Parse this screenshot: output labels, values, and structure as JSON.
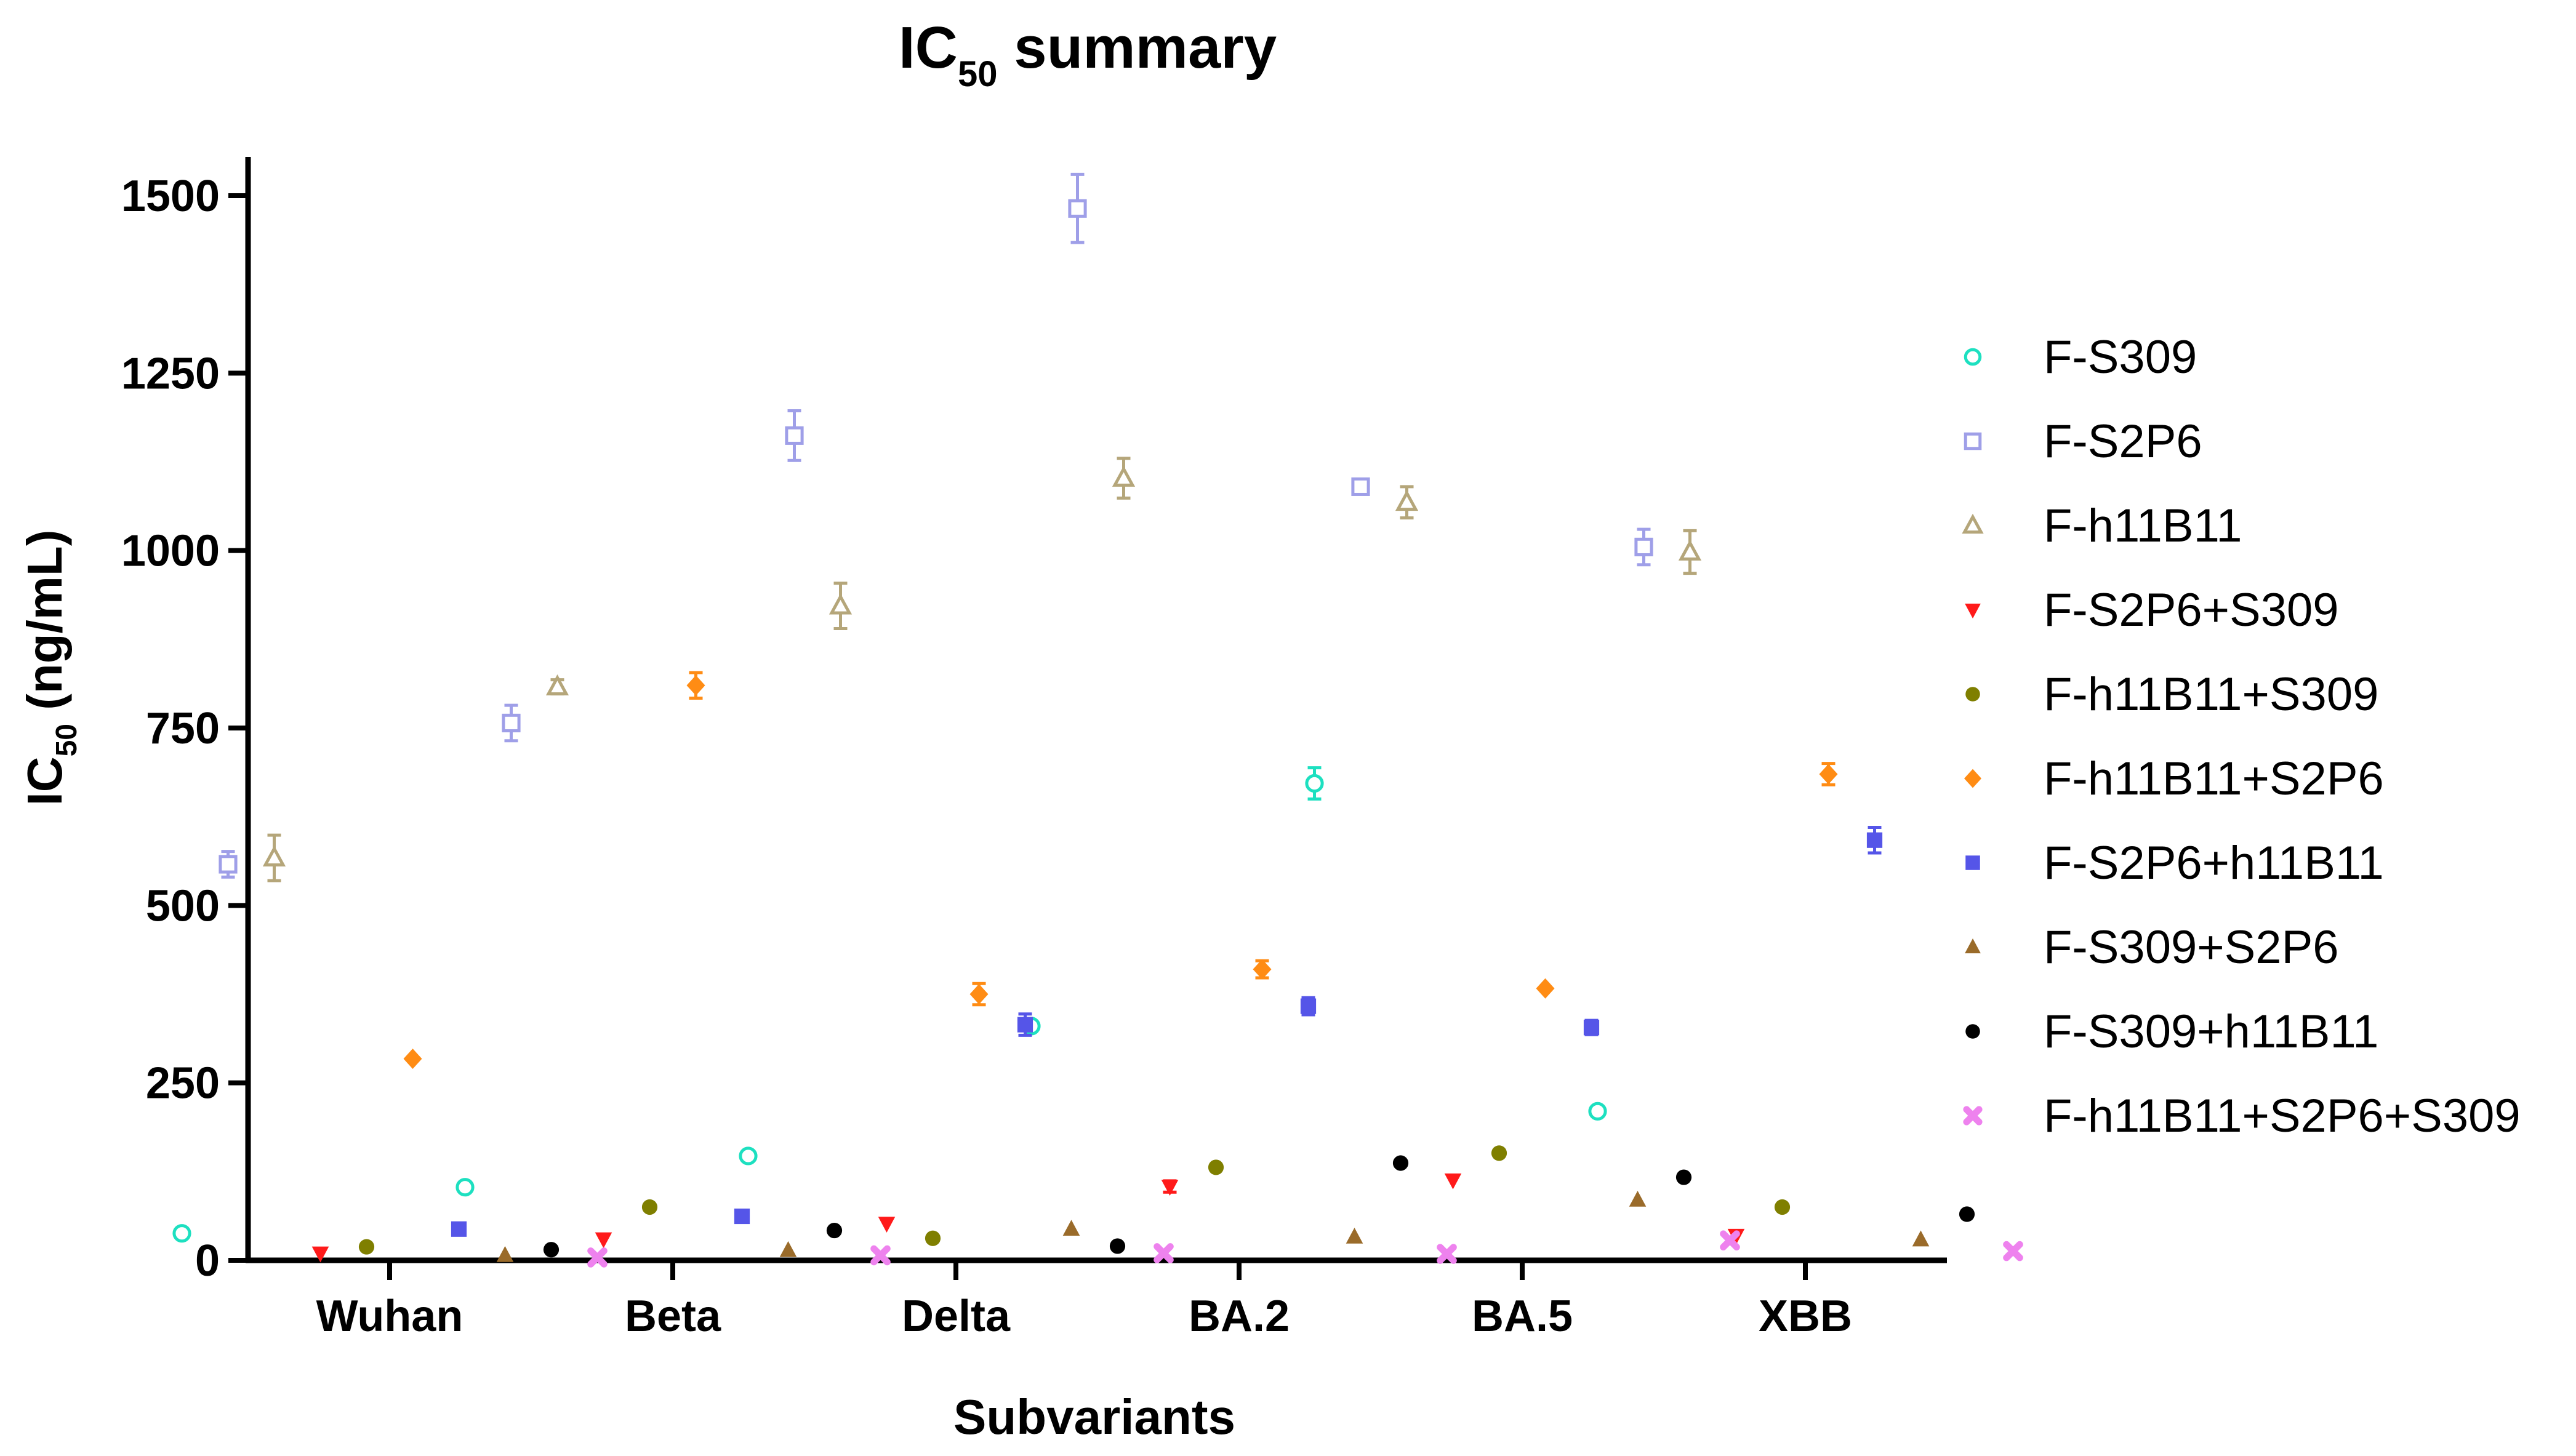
{
  "chart_data": {
    "type": "scatter",
    "title_main": "IC",
    "title_sub": "50",
    "title_rest": " summary",
    "xlabel": "Subvariants",
    "ylabel_main": "IC",
    "ylabel_sub": "50",
    "ylabel_rest": " (ng/mL)",
    "ylim": [
      0,
      1550
    ],
    "yticks": [
      "0",
      "250",
      "500",
      "750",
      "1000",
      "1250",
      "1500"
    ],
    "categories": [
      "Wuhan",
      "Beta",
      "Delta",
      "BA.2",
      "BA.5",
      "XBB"
    ],
    "series": [
      {
        "name": "F-S309",
        "marker": "circle-open",
        "color": "#1de0c0",
        "values": [
          38,
          103,
          147,
          330,
          672,
          210
        ],
        "errors": [
          0,
          0,
          0,
          0,
          22,
          0
        ]
      },
      {
        "name": "F-S2P6",
        "marker": "square-open",
        "color": "#9f9fe8",
        "values": [
          558,
          757,
          1162,
          1482,
          1090,
          1005
        ],
        "errors": [
          18,
          25,
          35,
          48,
          10,
          25
        ]
      },
      {
        "name": "F-h11B11",
        "marker": "triangle-open",
        "color": "#b5a67a",
        "values": [
          567,
          808,
          922,
          1102,
          1068,
          998
        ],
        "errors": [
          32,
          10,
          32,
          28,
          22,
          30
        ]
      },
      {
        "name": "F-S2P6+S309",
        "marker": "triangle-down",
        "color": "#ff1a1a",
        "values": [
          10,
          30,
          52,
          104,
          113,
          35
        ],
        "errors": [
          0,
          0,
          0,
          8,
          0,
          0
        ]
      },
      {
        "name": "F-h11B11+S309",
        "marker": "circle",
        "color": "#7f7f00",
        "values": [
          19,
          75,
          31,
          131,
          151,
          75
        ],
        "errors": [
          0,
          0,
          0,
          0,
          0,
          0
        ]
      },
      {
        "name": "F-h11B11+S2P6",
        "marker": "diamond",
        "color": "#ff8c14",
        "values": [
          284,
          810,
          375,
          410,
          383,
          685
        ],
        "errors": [
          0,
          18,
          15,
          12,
          0,
          15
        ]
      },
      {
        "name": "F-S2P6+h11B11",
        "marker": "square",
        "color": "#5555e8",
        "values": [
          44,
          62,
          332,
          358,
          328,
          592
        ],
        "errors": [
          0,
          0,
          15,
          12,
          10,
          18
        ]
      },
      {
        "name": "F-S309+S2P6",
        "marker": "triangle",
        "color": "#9a6b2a",
        "values": [
          7,
          14,
          44,
          33,
          85,
          29
        ],
        "errors": [
          0,
          0,
          0,
          0,
          0,
          0
        ]
      },
      {
        "name": "F-S309+h11B11",
        "marker": "circle",
        "color": "#000000",
        "values": [
          15,
          42,
          20,
          137,
          117,
          65
        ],
        "errors": [
          0,
          0,
          0,
          0,
          0,
          0
        ]
      },
      {
        "name": "F-h11B11+S2P6+S309",
        "marker": "cross",
        "color": "#ee82ee",
        "values": [
          4,
          7,
          10,
          9,
          28,
          13
        ],
        "errors": [
          0,
          0,
          0,
          0,
          0,
          0
        ]
      }
    ]
  }
}
